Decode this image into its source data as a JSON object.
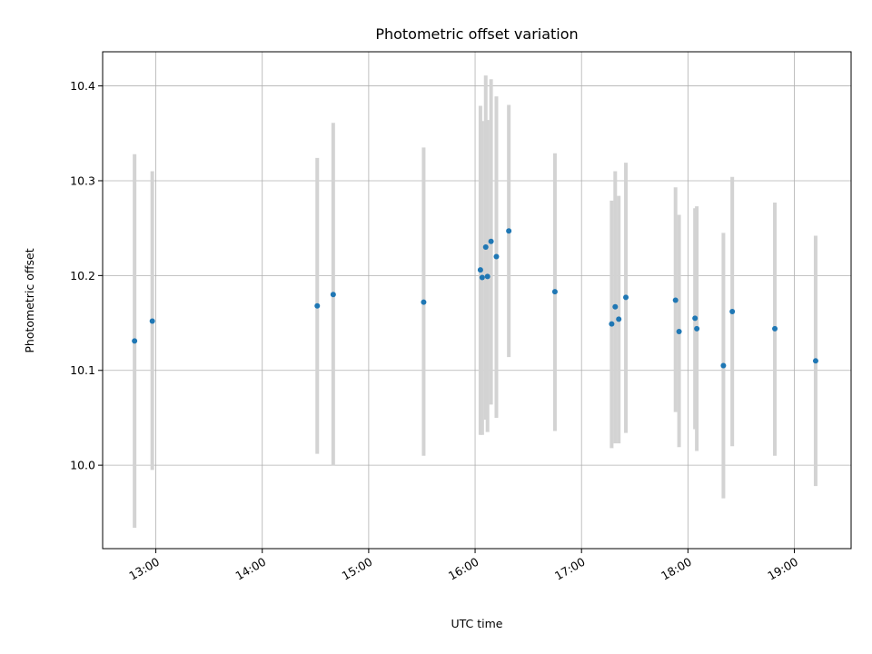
{
  "chart_data": {
    "type": "scatter",
    "title": "Photometric offset variation",
    "xlabel": "UTC time",
    "ylabel": "Photometric offset",
    "x_ticks": [
      "13:00",
      "14:00",
      "15:00",
      "16:00",
      "17:00",
      "18:00",
      "19:00"
    ],
    "x_tick_minutes": [
      780,
      840,
      900,
      960,
      1020,
      1080,
      1140
    ],
    "y_ticks": [
      "10.0",
      "10.1",
      "10.2",
      "10.3",
      "10.4"
    ],
    "y_tick_values": [
      10.0,
      10.1,
      10.2,
      10.3,
      10.4
    ],
    "xlim": [
      "12:30",
      "19:32"
    ],
    "ylim": [
      9.912,
      10.436
    ],
    "grid": true,
    "colors": {
      "point": "#1f77b4",
      "errorbar": "#d3d3d3"
    },
    "series": [
      {
        "points": [
          {
            "x": "12:48",
            "y": 10.131,
            "ylow": 9.934,
            "yhigh": 10.328
          },
          {
            "x": "12:58",
            "y": 10.152,
            "ylow": 9.995,
            "yhigh": 10.31
          },
          {
            "x": "14:31",
            "y": 10.168,
            "ylow": 10.012,
            "yhigh": 10.324
          },
          {
            "x": "14:40",
            "y": 10.18,
            "ylow": 10.0,
            "yhigh": 10.361
          },
          {
            "x": "15:31",
            "y": 10.172,
            "ylow": 10.01,
            "yhigh": 10.335
          },
          {
            "x": "16:03",
            "y": 10.206,
            "ylow": 10.032,
            "yhigh": 10.379
          },
          {
            "x": "16:04",
            "y": 10.198,
            "ylow": 10.032,
            "yhigh": 10.363
          },
          {
            "x": "16:06",
            "y": 10.23,
            "ylow": 10.048,
            "yhigh": 10.411
          },
          {
            "x": "16:07",
            "y": 10.199,
            "ylow": 10.035,
            "yhigh": 10.364
          },
          {
            "x": "16:09",
            "y": 10.236,
            "ylow": 10.064,
            "yhigh": 10.407
          },
          {
            "x": "16:12",
            "y": 10.22,
            "ylow": 10.05,
            "yhigh": 10.389
          },
          {
            "x": "16:19",
            "y": 10.247,
            "ylow": 10.114,
            "yhigh": 10.38
          },
          {
            "x": "16:45",
            "y": 10.183,
            "ylow": 10.036,
            "yhigh": 10.329
          },
          {
            "x": "17:17",
            "y": 10.149,
            "ylow": 10.018,
            "yhigh": 10.279
          },
          {
            "x": "17:19",
            "y": 10.167,
            "ylow": 10.023,
            "yhigh": 10.31
          },
          {
            "x": "17:21",
            "y": 10.154,
            "ylow": 10.023,
            "yhigh": 10.284
          },
          {
            "x": "17:25",
            "y": 10.177,
            "ylow": 10.034,
            "yhigh": 10.319
          },
          {
            "x": "17:53",
            "y": 10.174,
            "ylow": 10.056,
            "yhigh": 10.293
          },
          {
            "x": "17:55",
            "y": 10.141,
            "ylow": 10.019,
            "yhigh": 10.264
          },
          {
            "x": "18:04",
            "y": 10.155,
            "ylow": 10.038,
            "yhigh": 10.271
          },
          {
            "x": "18:05",
            "y": 10.144,
            "ylow": 10.015,
            "yhigh": 10.273
          },
          {
            "x": "18:20",
            "y": 10.105,
            "ylow": 9.965,
            "yhigh": 10.245
          },
          {
            "x": "18:25",
            "y": 10.162,
            "ylow": 10.02,
            "yhigh": 10.304
          },
          {
            "x": "18:49",
            "y": 10.144,
            "ylow": 10.01,
            "yhigh": 10.277
          },
          {
            "x": "19:12",
            "y": 10.11,
            "ylow": 9.978,
            "yhigh": 10.242
          }
        ]
      }
    ]
  }
}
